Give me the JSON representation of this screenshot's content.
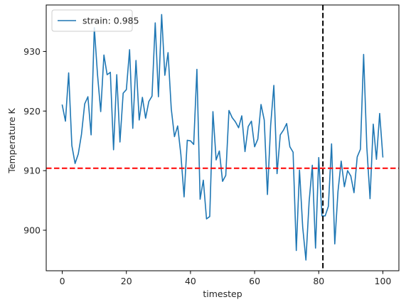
{
  "chart_data": {
    "type": "line",
    "title": "",
    "xlabel": "timestep",
    "ylabel": "Temperature K",
    "xlim": [
      -5,
      105
    ],
    "ylim": [
      893.2,
      937.8
    ],
    "xticks": [
      0,
      20,
      40,
      60,
      80,
      100
    ],
    "yticks": [
      900,
      910,
      920,
      930
    ],
    "grid": false,
    "legend_position": "top-left",
    "series": [
      {
        "name": "strain: 0.985",
        "color": "#1f77b4",
        "x": [
          0,
          1,
          2,
          3,
          4,
          5,
          6,
          7,
          8,
          9,
          10,
          11,
          12,
          13,
          14,
          15,
          16,
          17,
          18,
          19,
          20,
          21,
          22,
          23,
          24,
          25,
          26,
          27,
          28,
          29,
          30,
          31,
          32,
          33,
          34,
          35,
          36,
          37,
          38,
          39,
          40,
          41,
          42,
          43,
          44,
          45,
          46,
          47,
          48,
          49,
          50,
          51,
          52,
          53,
          54,
          55,
          56,
          57,
          58,
          59,
          60,
          61,
          62,
          63,
          64,
          65,
          66,
          67,
          68,
          69,
          70,
          71,
          72,
          73,
          74,
          75,
          76,
          77,
          78,
          79,
          80,
          81,
          82,
          83,
          84,
          85,
          86,
          87,
          88,
          89,
          90,
          91,
          92,
          93,
          94,
          95,
          96,
          97,
          98,
          99,
          100
        ],
        "values": [
          921.0,
          918.3,
          926.4,
          914.2,
          911.2,
          912.8,
          916.1,
          921.2,
          922.4,
          916.0,
          934.0,
          926.1,
          919.9,
          929.4,
          926.1,
          926.5,
          913.5,
          926.1,
          914.8,
          923.0,
          923.6,
          930.3,
          917.1,
          928.5,
          918.5,
          922.3,
          918.8,
          921.6,
          922.5,
          934.8,
          922.4,
          936.2,
          926.0,
          929.8,
          920.4,
          915.7,
          917.5,
          912.7,
          905.6,
          915.1,
          915.0,
          914.4,
          927.0,
          905.2,
          908.4,
          901.9,
          902.3,
          919.9,
          911.8,
          913.3,
          908.2,
          909.2,
          920.1,
          918.9,
          918.2,
          917.2,
          919.2,
          913.2,
          917.4,
          918.3,
          914.0,
          915.3,
          921.1,
          918.5,
          906.0,
          917.6,
          924.3,
          909.5,
          916.0,
          916.8,
          917.9,
          914.0,
          913.1,
          896.6,
          910.1,
          900.5,
          895.0,
          904.8,
          910.9,
          897.0,
          912.2,
          902.4,
          902.4,
          904.0,
          914.5,
          897.7,
          906.5,
          911.6,
          907.3,
          910.0,
          909.1,
          906.3,
          912.3,
          913.6,
          929.5,
          913.9,
          905.3,
          917.8,
          911.9,
          919.6,
          912.3
        ]
      }
    ],
    "reference_lines": [
      {
        "orientation": "horizontal",
        "value": 910.4,
        "color": "#ff0000",
        "style": "dashed"
      },
      {
        "orientation": "vertical",
        "value": 81.3,
        "color": "#000000",
        "style": "dashed"
      }
    ]
  }
}
